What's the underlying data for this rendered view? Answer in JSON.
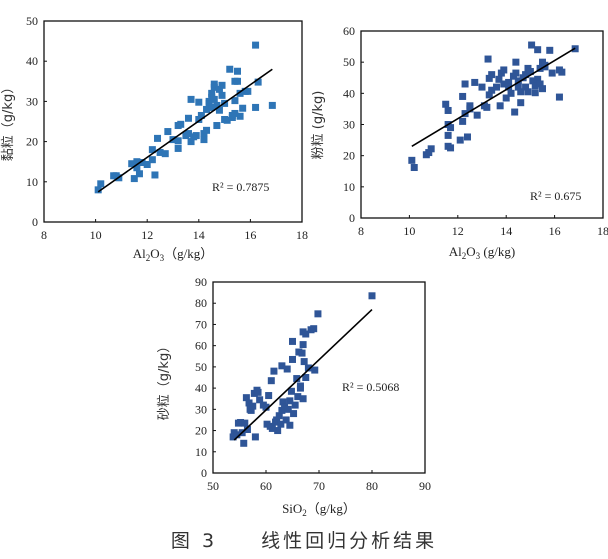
{
  "figure": {
    "caption_prefix": "图 3",
    "caption_text": "线性回归分析结果"
  },
  "chart_data": [
    {
      "id": "clay",
      "type": "scatter",
      "title": "",
      "xlabel": "Al2O3（g/kg）",
      "xlabel_main": "Al",
      "xlabel_sub1": "2",
      "xlabel_mid": "O",
      "xlabel_sub2": "3",
      "xlabel_unit": "（g/kg）",
      "ylabel": "黏粒（g/kg）",
      "xlim": [
        8,
        18
      ],
      "ylim": [
        0,
        50
      ],
      "xticks": [
        8,
        10,
        12,
        14,
        16,
        18
      ],
      "yticks": [
        0,
        10,
        20,
        30,
        40,
        50
      ],
      "grid": false,
      "legend": "none",
      "marker_color": "#2E75B6",
      "r2_label": "R² = 0.7875",
      "r2": 0.7875,
      "trendline": {
        "x": [
          10.1,
          16.85
        ],
        "y": [
          7.5,
          38.0
        ]
      },
      "points": [
        [
          10.1,
          8.0
        ],
        [
          10.2,
          9.5
        ],
        [
          10.7,
          11.5
        ],
        [
          10.8,
          11.5
        ],
        [
          10.9,
          11.0
        ],
        [
          11.4,
          14.5
        ],
        [
          11.5,
          10.8
        ],
        [
          11.6,
          15.0
        ],
        [
          11.6,
          13.5
        ],
        [
          11.7,
          12.0
        ],
        [
          11.8,
          14.8
        ],
        [
          12.0,
          14.3
        ],
        [
          12.2,
          18.0
        ],
        [
          12.2,
          15.5
        ],
        [
          12.3,
          11.7
        ],
        [
          12.4,
          20.8
        ],
        [
          12.5,
          17.3
        ],
        [
          12.7,
          17.0
        ],
        [
          12.8,
          22.5
        ],
        [
          13.0,
          20.5
        ],
        [
          13.2,
          24.0
        ],
        [
          13.2,
          18.3
        ],
        [
          13.3,
          24.3
        ],
        [
          13.2,
          20.2
        ],
        [
          13.5,
          21.5
        ],
        [
          13.6,
          25.8
        ],
        [
          13.6,
          22.0
        ],
        [
          13.7,
          20.0
        ],
        [
          13.7,
          30.5
        ],
        [
          13.8,
          21.2
        ],
        [
          13.9,
          21.5
        ],
        [
          14.0,
          29.8
        ],
        [
          14.0,
          25.5
        ],
        [
          14.1,
          26.5
        ],
        [
          14.2,
          22.0
        ],
        [
          14.2,
          20.5
        ],
        [
          14.3,
          22.8
        ],
        [
          14.3,
          28.0
        ],
        [
          14.4,
          29.5
        ],
        [
          14.4,
          30.0
        ],
        [
          14.5,
          31.0
        ],
        [
          14.5,
          28.5
        ],
        [
          14.5,
          32.0
        ],
        [
          14.6,
          33.5
        ],
        [
          14.6,
          34.3
        ],
        [
          14.6,
          30.5
        ],
        [
          14.7,
          29.0
        ],
        [
          14.7,
          24.0
        ],
        [
          14.8,
          27.8
        ],
        [
          14.8,
          33.0
        ],
        [
          14.9,
          34.0
        ],
        [
          14.9,
          31.5
        ],
        [
          15.0,
          29.5
        ],
        [
          15.0,
          25.5
        ],
        [
          15.1,
          25.3
        ],
        [
          15.2,
          38.0
        ],
        [
          15.3,
          26.0
        ],
        [
          15.3,
          26.5
        ],
        [
          15.4,
          35.0
        ],
        [
          15.4,
          30.2
        ],
        [
          15.4,
          27.0
        ],
        [
          15.5,
          37.5
        ],
        [
          15.5,
          35.0
        ],
        [
          15.6,
          32.0
        ],
        [
          15.6,
          26.3
        ],
        [
          15.7,
          28.3
        ],
        [
          15.8,
          32.5
        ],
        [
          15.9,
          32.5
        ],
        [
          16.2,
          44.0
        ],
        [
          16.2,
          28.5
        ],
        [
          16.3,
          34.8
        ],
        [
          16.85,
          29.0
        ]
      ]
    },
    {
      "id": "silt",
      "type": "scatter",
      "title": "",
      "xlabel": "Al2O3 (g/kg)",
      "xlabel_main": "Al",
      "xlabel_sub1": "2",
      "xlabel_mid": "O",
      "xlabel_sub2": "3",
      "xlabel_unit": " (g/kg)",
      "ylabel": "粉粒 (g/kg)",
      "xlim": [
        8,
        18
      ],
      "ylim": [
        0,
        60
      ],
      "xticks": [
        8,
        10,
        12,
        14,
        16,
        18
      ],
      "yticks": [
        0,
        10,
        20,
        30,
        40,
        50,
        60
      ],
      "grid": false,
      "legend": "none",
      "marker_color": "#2F5597",
      "r2_label": "R² = 0.675",
      "r2": 0.675,
      "trendline": {
        "x": [
          10.1,
          16.85
        ],
        "y": [
          23.0,
          54.5
        ]
      },
      "points": [
        [
          10.1,
          18.5
        ],
        [
          10.2,
          16.2
        ],
        [
          10.7,
          20.3
        ],
        [
          10.8,
          21.0
        ],
        [
          10.9,
          22.2
        ],
        [
          11.5,
          36.5
        ],
        [
          11.6,
          34.5
        ],
        [
          11.6,
          30.0
        ],
        [
          11.6,
          26.5
        ],
        [
          11.6,
          23.0
        ],
        [
          11.7,
          29.0
        ],
        [
          11.7,
          22.5
        ],
        [
          12.1,
          25.0
        ],
        [
          12.2,
          39.0
        ],
        [
          12.2,
          31.0
        ],
        [
          12.3,
          33.5
        ],
        [
          12.3,
          43.0
        ],
        [
          12.4,
          26.0
        ],
        [
          12.5,
          36.0
        ],
        [
          12.5,
          35.0
        ],
        [
          12.7,
          43.5
        ],
        [
          12.8,
          33.0
        ],
        [
          13.0,
          42.0
        ],
        [
          13.1,
          36.0
        ],
        [
          13.2,
          35.5
        ],
        [
          13.25,
          51.0
        ],
        [
          13.3,
          39.5
        ],
        [
          13.3,
          44.8
        ],
        [
          13.4,
          46.0
        ],
        [
          13.4,
          41.0
        ],
        [
          13.6,
          42.0
        ],
        [
          13.7,
          44.5
        ],
        [
          13.75,
          36.0
        ],
        [
          13.8,
          46.5
        ],
        [
          13.9,
          47.5
        ],
        [
          13.9,
          43.0
        ],
        [
          14.0,
          38.5
        ],
        [
          14.1,
          43.5
        ],
        [
          14.1,
          42.0
        ],
        [
          14.2,
          40.0
        ],
        [
          14.3,
          45.5
        ],
        [
          14.35,
          34.0
        ],
        [
          14.4,
          50.0
        ],
        [
          14.4,
          46.5
        ],
        [
          14.5,
          44.0
        ],
        [
          14.5,
          42.0
        ],
        [
          14.6,
          37.0
        ],
        [
          14.6,
          40.5
        ],
        [
          14.7,
          45.0
        ],
        [
          14.8,
          46.0
        ],
        [
          14.8,
          42.0
        ],
        [
          14.9,
          48.0
        ],
        [
          14.9,
          40.5
        ],
        [
          15.0,
          47.0
        ],
        [
          15.05,
          55.5
        ],
        [
          15.1,
          44.0
        ],
        [
          15.2,
          42.5
        ],
        [
          15.2,
          40.2
        ],
        [
          15.3,
          44.5
        ],
        [
          15.3,
          54.0
        ],
        [
          15.4,
          48.0
        ],
        [
          15.4,
          43.0
        ],
        [
          15.5,
          50.0
        ],
        [
          15.5,
          41.5
        ],
        [
          15.6,
          49.0
        ],
        [
          15.6,
          48.5
        ],
        [
          15.8,
          53.8
        ],
        [
          15.9,
          46.5
        ],
        [
          16.2,
          38.8
        ],
        [
          16.2,
          47.5
        ],
        [
          16.3,
          46.8
        ],
        [
          16.85,
          54.3
        ]
      ]
    },
    {
      "id": "sand",
      "type": "scatter",
      "title": "",
      "xlabel": "SiO2（g/kg）",
      "xlabel_main": "SiO",
      "xlabel_sub1": "2",
      "xlabel_mid": "",
      "xlabel_sub2": "",
      "xlabel_unit": "（g/kg）",
      "ylabel": "砂粒（g/kg）",
      "xlim": [
        50,
        90
      ],
      "ylim": [
        0,
        90
      ],
      "xticks": [
        50,
        60,
        70,
        80,
        90
      ],
      "yticks": [
        0,
        10,
        20,
        30,
        40,
        50,
        60,
        70,
        80,
        90
      ],
      "grid": false,
      "legend": "none",
      "marker_color": "#2F5597",
      "r2_label": "R² = 0.5068",
      "r2": 0.5068,
      "trendline": {
        "x": [
          54.0,
          80.0
        ],
        "y": [
          15.5,
          77.0
        ]
      },
      "points": [
        [
          53.8,
          17.0
        ],
        [
          54.0,
          19.0
        ],
        [
          54.5,
          18.0
        ],
        [
          54.8,
          23.5
        ],
        [
          55.2,
          23.8
        ],
        [
          55.5,
          19.0
        ],
        [
          55.8,
          14.0
        ],
        [
          56.0,
          23.5
        ],
        [
          56.3,
          35.5
        ],
        [
          56.5,
          20.5
        ],
        [
          56.8,
          33.0
        ],
        [
          57.0,
          30.0
        ],
        [
          57.2,
          29.5
        ],
        [
          57.5,
          31.5
        ],
        [
          57.8,
          37.5
        ],
        [
          58.0,
          17.0
        ],
        [
          58.3,
          39.0
        ],
        [
          58.5,
          38.0
        ],
        [
          58.8,
          34.5
        ],
        [
          59.5,
          32.0
        ],
        [
          60.0,
          31.0
        ],
        [
          60.2,
          23.0
        ],
        [
          60.5,
          36.5
        ],
        [
          60.8,
          22.0
        ],
        [
          61.0,
          43.5
        ],
        [
          61.2,
          21.0
        ],
        [
          61.5,
          48.0
        ],
        [
          61.8,
          24.0
        ],
        [
          62.0,
          25.0
        ],
        [
          62.2,
          20.0
        ],
        [
          62.5,
          27.0
        ],
        [
          62.8,
          23.0
        ],
        [
          63.0,
          29.5
        ],
        [
          63.0,
          50.5
        ],
        [
          63.2,
          33.5
        ],
        [
          63.5,
          31.0
        ],
        [
          63.8,
          25.0
        ],
        [
          64.0,
          49.0
        ],
        [
          64.2,
          30.0
        ],
        [
          64.5,
          34.0
        ],
        [
          64.5,
          22.5
        ],
        [
          64.8,
          38.5
        ],
        [
          65.0,
          53.5
        ],
        [
          65.0,
          62.0
        ],
        [
          65.2,
          28.0
        ],
        [
          65.5,
          32.0
        ],
        [
          65.8,
          44.5
        ],
        [
          66.0,
          36.0
        ],
        [
          66.2,
          57.0
        ],
        [
          66.5,
          40.0
        ],
        [
          66.5,
          41.0
        ],
        [
          66.8,
          56.5
        ],
        [
          67.0,
          60.5
        ],
        [
          67.0,
          35.0
        ],
        [
          67.0,
          66.5
        ],
        [
          67.2,
          52.5
        ],
        [
          67.5,
          45.0
        ],
        [
          67.5,
          65.5
        ],
        [
          68.0,
          49.5
        ],
        [
          68.5,
          67.5
        ],
        [
          69.0,
          68.0
        ],
        [
          69.2,
          48.5
        ],
        [
          69.8,
          75.0
        ],
        [
          80.0,
          83.5
        ]
      ]
    }
  ]
}
